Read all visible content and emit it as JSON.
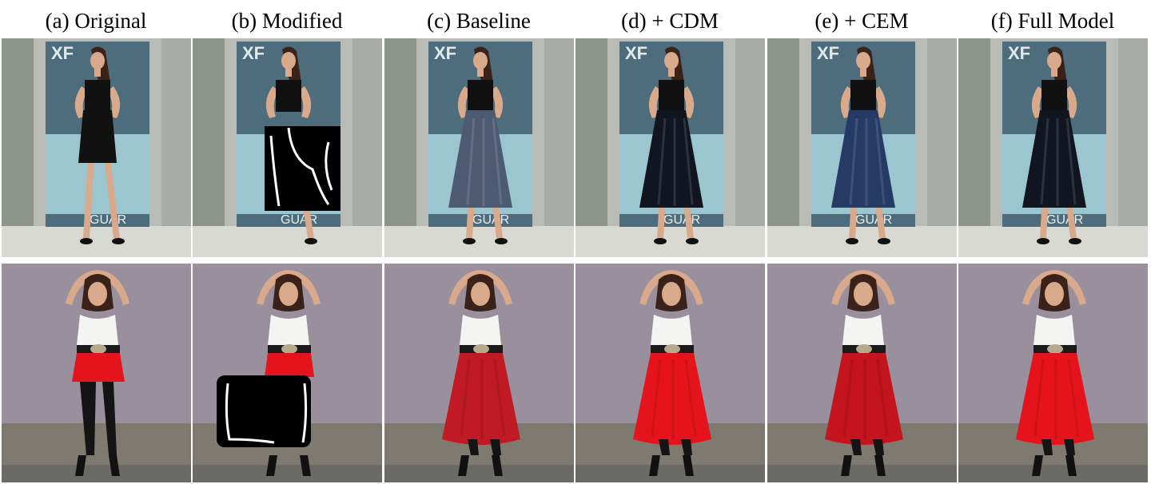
{
  "columns": [
    {
      "key": "a",
      "label": "(a) Original"
    },
    {
      "key": "b",
      "label": "(b) Modified"
    },
    {
      "key": "c",
      "label": "(c) Baseline"
    },
    {
      "key": "d",
      "label": "(d) + CDM"
    },
    {
      "key": "e",
      "label": "(e) + CEM"
    },
    {
      "key": "f",
      "label": "(f) Full Model"
    }
  ],
  "rows": [
    {
      "key": "row1",
      "banner_text_top": "XF",
      "banner_text_bottom": "GUAR",
      "garment_color": "#10151f"
    },
    {
      "key": "row2",
      "garment_color": "#e5141c"
    }
  ],
  "colors": {
    "wall1": "#b9bcb6",
    "banner": "#4d6d7c",
    "wall2": "#9a8f9c",
    "mask": "#000000",
    "mask_edge": "#ffffff",
    "skin": "#d8a98a",
    "hair": "#3a2218"
  }
}
